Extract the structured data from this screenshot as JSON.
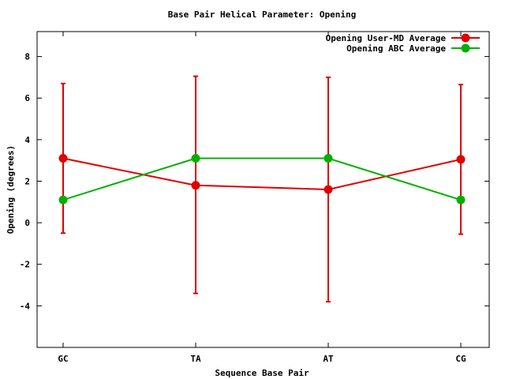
{
  "chart_data": {
    "type": "line",
    "title": "Base Pair Helical Parameter: Opening",
    "xlabel": "Sequence Base Pair",
    "ylabel": "Opening (degrees)",
    "categories": [
      "GC",
      "TA",
      "AT",
      "CG"
    ],
    "ylim": [
      -6,
      9.2
    ],
    "yticks": [
      -4,
      -2,
      0,
      2,
      4,
      6,
      8
    ],
    "legend_position": "top-right",
    "series": [
      {
        "name": "Opening User-MD Average",
        "color": "#e00000",
        "values": [
          3.1,
          1.8,
          1.6,
          3.05
        ],
        "error_low": [
          -0.5,
          -3.4,
          -3.8,
          -0.55
        ],
        "error_high": [
          6.7,
          7.05,
          7.0,
          6.65
        ]
      },
      {
        "name": "Opening ABC Average",
        "color": "#00b000",
        "values": [
          1.1,
          3.1,
          3.1,
          1.1
        ]
      }
    ]
  }
}
